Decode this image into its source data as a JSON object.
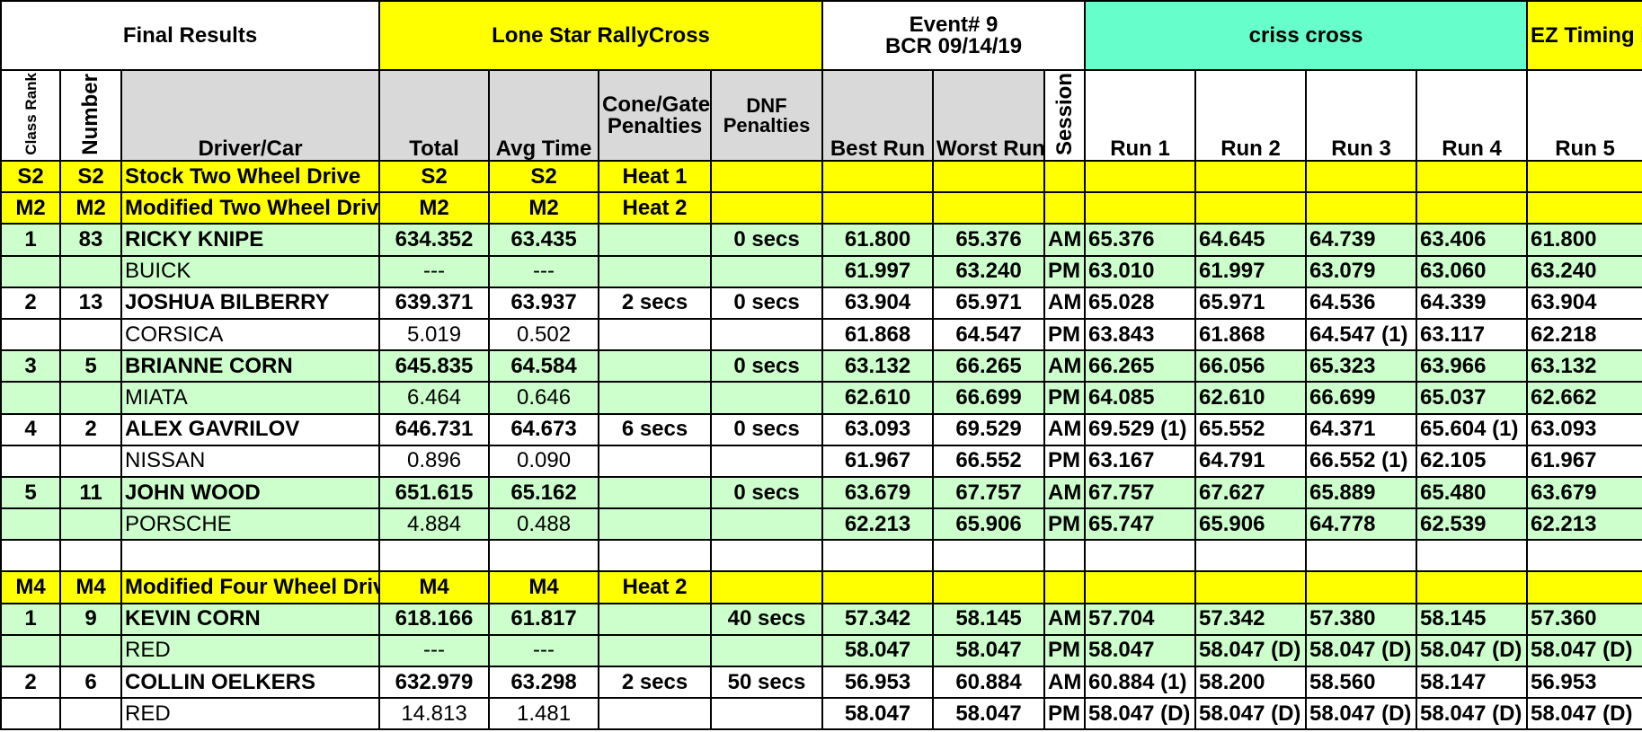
{
  "header": {
    "final_results": "Final Results",
    "series": "Lone Star RallyCross",
    "event_line1": "Event# 9",
    "event_line2": "BCR 09/14/19",
    "course": "criss cross",
    "credit": "EZ Timing by Wayne Stockel"
  },
  "columns": {
    "class_rank": "Class Rank",
    "number": "Number",
    "driver_car": "Driver/Car",
    "total": "Total",
    "avg_time": "Avg Time",
    "cone_gate_1": "Cone/Gate",
    "cone_gate_2": "Penalties",
    "dnf_1": "DNF",
    "dnf_2": "Penalties",
    "best_run": "Best Run",
    "worst_run": "Worst Run",
    "session": "Session",
    "run1": "Run 1",
    "run2": "Run 2",
    "run3": "Run 3",
    "run4": "Run 4",
    "run5": "Run 5"
  },
  "classes": [
    {
      "rank": "S2",
      "number": "S2",
      "name": "Stock Two Wheel Drive",
      "total": "S2",
      "avg": "S2",
      "heat": "Heat 1"
    },
    {
      "rank": "M2",
      "number": "M2",
      "name": "Modified Two Wheel Drive",
      "total": "M2",
      "avg": "M2",
      "heat": "Heat 2"
    },
    {
      "rank": "M4",
      "number": "M4",
      "name": "Modified Four Wheel Drive",
      "total": "M4",
      "avg": "M4",
      "heat": "Heat 2"
    }
  ],
  "m2_entries": [
    {
      "rank": "1",
      "number": "83",
      "driver": "RICKY KNIPE",
      "car": "BUICK",
      "total": "634.352",
      "avg": "63.435",
      "total_diff": "---",
      "avg_diff": "---",
      "cone": "",
      "dnf": "0 secs",
      "am": {
        "best": "61.800",
        "worst": "65.376",
        "session": "AM",
        "runs": [
          "65.376",
          "64.645",
          "64.739",
          "63.406",
          "61.800"
        ]
      },
      "pm": {
        "best": "61.997",
        "worst": "63.240",
        "session": "PM",
        "runs": [
          "63.010",
          "61.997",
          "63.079",
          "63.060",
          "63.240"
        ]
      }
    },
    {
      "rank": "2",
      "number": "13",
      "driver": "JOSHUA BILBERRY",
      "car": "CORSICA",
      "total": "639.371",
      "avg": "63.937",
      "total_diff": "5.019",
      "avg_diff": "0.502",
      "cone": "2 secs",
      "dnf": "0 secs",
      "am": {
        "best": "63.904",
        "worst": "65.971",
        "session": "AM",
        "runs": [
          "65.028",
          "65.971",
          "64.536",
          "64.339",
          "63.904"
        ]
      },
      "pm": {
        "best": "61.868",
        "worst": "64.547",
        "session": "PM",
        "runs": [
          "63.843",
          "61.868",
          "64.547 (1)",
          "63.117",
          "62.218"
        ]
      }
    },
    {
      "rank": "3",
      "number": "5",
      "driver": "BRIANNE CORN",
      "car": "MIATA",
      "total": "645.835",
      "avg": "64.584",
      "total_diff": "6.464",
      "avg_diff": "0.646",
      "cone": "",
      "dnf": "0 secs",
      "am": {
        "best": "63.132",
        "worst": "66.265",
        "session": "AM",
        "runs": [
          "66.265",
          "66.056",
          "65.323",
          "63.966",
          "63.132"
        ]
      },
      "pm": {
        "best": "62.610",
        "worst": "66.699",
        "session": "PM",
        "runs": [
          "64.085",
          "62.610",
          "66.699",
          "65.037",
          "62.662"
        ]
      }
    },
    {
      "rank": "4",
      "number": "2",
      "driver": "ALEX GAVRILOV",
      "car": "NISSAN",
      "total": "646.731",
      "avg": "64.673",
      "total_diff": "0.896",
      "avg_diff": "0.090",
      "cone": "6 secs",
      "dnf": "0 secs",
      "am": {
        "best": "63.093",
        "worst": "69.529",
        "session": "AM",
        "runs": [
          "69.529 (1)",
          "65.552",
          "64.371",
          "65.604 (1)",
          "63.093"
        ]
      },
      "pm": {
        "best": "61.967",
        "worst": "66.552",
        "session": "PM",
        "runs": [
          "63.167",
          "64.791",
          "66.552 (1)",
          "62.105",
          "61.967"
        ]
      }
    },
    {
      "rank": "5",
      "number": "11",
      "driver": "JOHN WOOD",
      "car": "PORSCHE",
      "total": "651.615",
      "avg": "65.162",
      "total_diff": "4.884",
      "avg_diff": "0.488",
      "cone": "",
      "dnf": "0 secs",
      "am": {
        "best": "63.679",
        "worst": "67.757",
        "session": "AM",
        "runs": [
          "67.757",
          "67.627",
          "65.889",
          "65.480",
          "63.679"
        ]
      },
      "pm": {
        "best": "62.213",
        "worst": "65.906",
        "session": "PM",
        "runs": [
          "65.747",
          "65.906",
          "64.778",
          "62.539",
          "62.213"
        ]
      }
    }
  ],
  "m4_entries": [
    {
      "rank": "1",
      "number": "9",
      "driver": "KEVIN CORN",
      "car": "RED",
      "total": "618.166",
      "avg": "61.817",
      "total_diff": "---",
      "avg_diff": "---",
      "cone": "",
      "dnf": "40 secs",
      "am": {
        "best": "57.342",
        "worst": "58.145",
        "session": "AM",
        "runs": [
          "57.704",
          "57.342",
          "57.380",
          "58.145",
          "57.360"
        ]
      },
      "pm": {
        "best": "58.047",
        "worst": "58.047",
        "session": "PM",
        "runs": [
          "58.047",
          "58.047 (D)",
          "58.047 (D)",
          "58.047 (D)",
          "58.047 (D)"
        ]
      }
    },
    {
      "rank": "2",
      "number": "6",
      "driver": "COLLIN OELKERS",
      "car": "RED",
      "total": "632.979",
      "avg": "63.298",
      "total_diff": "14.813",
      "avg_diff": "1.481",
      "cone": "2 secs",
      "dnf": "50 secs",
      "am": {
        "best": "56.953",
        "worst": "60.884",
        "session": "AM",
        "runs": [
          "60.884 (1)",
          "58.200",
          "58.560",
          "58.147",
          "56.953"
        ]
      },
      "pm": {
        "best": "58.047",
        "worst": "58.047",
        "session": "PM",
        "runs": [
          "58.047 (D)",
          "58.047 (D)",
          "58.047 (D)",
          "58.047 (D)",
          "58.047 (D)"
        ]
      }
    }
  ],
  "colors": {
    "yellow": "#ffff00",
    "green_row": "#ccffcc",
    "header_gray": "#d9d9d9",
    "mint": "#66ffcc",
    "red_title": "#ee1c25"
  }
}
